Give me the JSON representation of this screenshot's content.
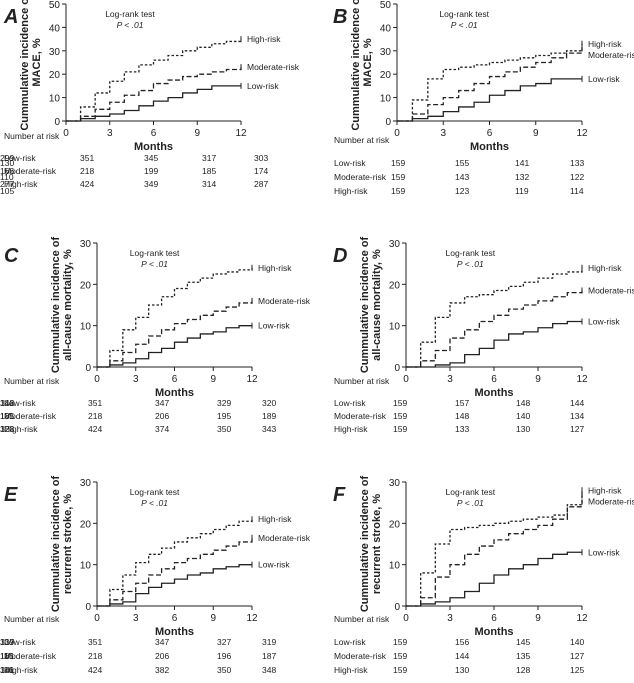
{
  "figure": {
    "x_label": "Months",
    "x_ticks": [
      0,
      3,
      6,
      9,
      12
    ],
    "test_title": "Log-rank test",
    "p_value": "P < .01",
    "risk_table_title": "Number at risk",
    "group_labels": [
      "Low-risk",
      "Moderate-risk",
      "High-risk"
    ]
  },
  "chart_data": [
    {
      "panel": "A",
      "type": "line",
      "ylabel": "Cummulative incidence of MACE, %",
      "ylim": [
        0,
        50
      ],
      "y_ticks": [
        0,
        10,
        20,
        30,
        40,
        50
      ],
      "xlim": [
        0,
        12
      ],
      "series": [
        {
          "name": "Low-risk",
          "style": "solid",
          "x": [
            0,
            1,
            2,
            3,
            4,
            5,
            6,
            7,
            8,
            9,
            10,
            11,
            12
          ],
          "values": [
            0,
            1,
            2,
            3,
            4.5,
            6.5,
            8.5,
            10,
            12,
            13.5,
            15,
            15,
            15
          ]
        },
        {
          "name": "Moderate-risk",
          "style": "dashed",
          "x": [
            0,
            1,
            2,
            3,
            4,
            5,
            6,
            7,
            8,
            9,
            10,
            11,
            12
          ],
          "values": [
            0,
            2,
            5,
            8,
            11,
            13,
            16,
            17.5,
            19,
            20,
            21,
            22,
            23
          ]
        },
        {
          "name": "High-risk",
          "style": "dotted",
          "x": [
            0,
            1,
            2,
            3,
            4,
            5,
            6,
            7,
            8,
            9,
            10,
            11,
            12
          ],
          "values": [
            0,
            6,
            12,
            17,
            21,
            24,
            26,
            28,
            30,
            31.5,
            33,
            34,
            35
          ]
        }
      ],
      "risk_table": {
        "Low-risk": [
          351,
          345,
          317,
          303,
          299
        ],
        "Moderate-risk": [
          218,
          199,
          185,
          174,
          166
        ],
        "High-risk": [
          424,
          349,
          314,
          287,
          277
        ]
      }
    },
    {
      "panel": "B",
      "type": "line",
      "ylabel": "Cummulative incidence of MACE, %",
      "ylim": [
        0,
        50
      ],
      "y_ticks": [
        0,
        10,
        20,
        30,
        40,
        50
      ],
      "xlim": [
        0,
        12
      ],
      "series": [
        {
          "name": "High-risk",
          "style": "dotted",
          "x": [
            0,
            1,
            2,
            3,
            4,
            5,
            6,
            7,
            8,
            9,
            10,
            11,
            12
          ],
          "values": [
            0,
            9,
            18,
            22,
            23,
            24,
            25,
            26,
            27,
            28,
            29,
            30,
            33
          ]
        },
        {
          "name": "Moderate-risk",
          "style": "dashed",
          "x": [
            0,
            1,
            2,
            3,
            4,
            5,
            6,
            7,
            8,
            9,
            10,
            11,
            12
          ],
          "values": [
            0,
            3,
            7,
            10,
            13,
            16,
            19,
            21,
            23,
            25,
            27,
            29,
            31
          ]
        },
        {
          "name": "Low-risk",
          "style": "solid",
          "x": [
            0,
            1,
            2,
            3,
            4,
            5,
            6,
            7,
            8,
            9,
            10,
            11,
            12
          ],
          "values": [
            0,
            1,
            2,
            4,
            6,
            8,
            11,
            13,
            15,
            16,
            18,
            18,
            18
          ]
        }
      ],
      "risk_table": {
        "Low-risk": [
          159,
          155,
          141,
          133,
          130
        ],
        "Moderate-risk": [
          159,
          143,
          132,
          122,
          110
        ],
        "High-risk": [
          159,
          123,
          119,
          114,
          105
        ]
      }
    },
    {
      "panel": "C",
      "type": "line",
      "ylabel": "Cummulative incidence of all-cause mortality, %",
      "ylim": [
        0,
        30
      ],
      "y_ticks": [
        0,
        10,
        20,
        30
      ],
      "xlim": [
        0,
        12
      ],
      "series": [
        {
          "name": "High-risk",
          "style": "dotted",
          "x": [
            0,
            1,
            2,
            3,
            4,
            5,
            6,
            7,
            8,
            9,
            10,
            11,
            12
          ],
          "values": [
            0,
            4,
            9,
            12,
            15,
            17,
            19,
            20.5,
            21.5,
            22.5,
            23,
            23.5,
            24
          ]
        },
        {
          "name": "Moderate-risk",
          "style": "dashed",
          "x": [
            0,
            1,
            2,
            3,
            4,
            5,
            6,
            7,
            8,
            9,
            10,
            11,
            12
          ],
          "values": [
            0,
            1.5,
            3.5,
            5.5,
            7.5,
            9,
            10.5,
            11.5,
            12.5,
            13.5,
            14.5,
            15.5,
            16
          ]
        },
        {
          "name": "Low-risk",
          "style": "solid",
          "x": [
            0,
            1,
            2,
            3,
            4,
            5,
            6,
            7,
            8,
            9,
            10,
            11,
            12
          ],
          "values": [
            0,
            0.5,
            1,
            2,
            3.5,
            4.5,
            6,
            7,
            8,
            8.5,
            9.5,
            10,
            10
          ]
        }
      ],
      "risk_table": {
        "Low-risk": [
          351,
          347,
          329,
          320,
          318
        ],
        "Moderate-risk": [
          218,
          206,
          195,
          189,
          185
        ],
        "High-risk": [
          424,
          374,
          350,
          343,
          328
        ]
      }
    },
    {
      "panel": "D",
      "type": "line",
      "ylabel": "Cummulative incidence of all-cause mortality, %",
      "ylim": [
        0,
        30
      ],
      "y_ticks": [
        0,
        10,
        20,
        30
      ],
      "xlim": [
        0,
        12
      ],
      "series": [
        {
          "name": "High-risk",
          "style": "dotted",
          "x": [
            0,
            1,
            2,
            3,
            4,
            5,
            6,
            7,
            8,
            9,
            10,
            11,
            12
          ],
          "values": [
            0,
            6,
            12,
            15.5,
            17,
            17.5,
            18.5,
            19.5,
            20.5,
            21.5,
            22.5,
            23,
            24
          ]
        },
        {
          "name": "Moderate-risk",
          "style": "dashed",
          "x": [
            0,
            1,
            2,
            3,
            4,
            5,
            6,
            7,
            8,
            9,
            10,
            11,
            12
          ],
          "values": [
            0,
            1.5,
            4,
            7,
            9,
            11,
            12.5,
            14,
            15,
            16,
            17,
            18,
            18.5
          ]
        },
        {
          "name": "Low-risk",
          "style": "solid",
          "x": [
            0,
            1,
            2,
            3,
            4,
            5,
            6,
            7,
            8,
            9,
            10,
            11,
            12
          ],
          "values": [
            0,
            0,
            0.5,
            1,
            3,
            4.5,
            6.5,
            8,
            8.5,
            9.5,
            10.5,
            11,
            11
          ]
        }
      ],
      "risk_table": {
        "Low-risk": [
          159,
          157,
          148,
          144,
          142
        ],
        "Moderate-risk": [
          159,
          148,
          140,
          134,
          131
        ],
        "High-risk": [
          159,
          133,
          130,
          127,
          123
        ]
      }
    },
    {
      "panel": "E",
      "type": "line",
      "ylabel": "Cummulative incidence of recurrent stroke, %",
      "ylim": [
        0,
        30
      ],
      "y_ticks": [
        0,
        10,
        20,
        30
      ],
      "xlim": [
        0,
        12
      ],
      "series": [
        {
          "name": "High-risk",
          "style": "dotted",
          "x": [
            0,
            1,
            2,
            3,
            4,
            5,
            6,
            7,
            8,
            9,
            10,
            11,
            12
          ],
          "values": [
            0,
            4,
            7.5,
            10.5,
            12.5,
            14,
            15.5,
            16.5,
            17.5,
            18.5,
            19.5,
            20.5,
            21
          ]
        },
        {
          "name": "Moderate-risk",
          "style": "dashed",
          "x": [
            0,
            1,
            2,
            3,
            4,
            5,
            6,
            7,
            8,
            9,
            10,
            11,
            12
          ],
          "values": [
            0,
            1.5,
            3.5,
            5.5,
            7.5,
            9,
            10.5,
            11.5,
            12.5,
            13.5,
            14.5,
            15.5,
            16.5
          ]
        },
        {
          "name": "Low-risk",
          "style": "solid",
          "x": [
            0,
            1,
            2,
            3,
            4,
            5,
            6,
            7,
            8,
            9,
            10,
            11,
            12
          ],
          "values": [
            0,
            0.5,
            1,
            3,
            4.5,
            5.5,
            6.5,
            7.5,
            8,
            9,
            9.5,
            10,
            10
          ]
        }
      ],
      "risk_table": {
        "Low-risk": [
          351,
          347,
          327,
          319,
          317
        ],
        "Moderate-risk": [
          218,
          206,
          196,
          187,
          181
        ],
        "High-risk": [
          424,
          382,
          350,
          348,
          341
        ]
      }
    },
    {
      "panel": "F",
      "type": "line",
      "ylabel": "Cummulative incidence of recurrent stroke, %",
      "ylim": [
        0,
        30
      ],
      "y_ticks": [
        0,
        10,
        20,
        30
      ],
      "xlim": [
        0,
        12
      ],
      "series": [
        {
          "name": "High-risk",
          "style": "dotted",
          "x": [
            0,
            1,
            2,
            3,
            4,
            5,
            6,
            7,
            8,
            9,
            10,
            11,
            12
          ],
          "values": [
            0,
            8,
            15,
            18.5,
            19,
            19.5,
            20,
            20.5,
            21,
            21.5,
            22,
            24.5,
            28
          ]
        },
        {
          "name": "Moderate-risk",
          "style": "dashed",
          "x": [
            0,
            1,
            2,
            3,
            4,
            5,
            6,
            7,
            8,
            9,
            10,
            11,
            12
          ],
          "values": [
            0,
            2,
            7,
            10,
            12.5,
            14.5,
            16,
            17.5,
            18.5,
            19.5,
            21,
            24,
            27
          ]
        },
        {
          "name": "Low-risk",
          "style": "solid",
          "x": [
            0,
            1,
            2,
            3,
            4,
            5,
            6,
            7,
            8,
            9,
            10,
            11,
            12
          ],
          "values": [
            0,
            0.5,
            1,
            2,
            3.5,
            5.5,
            7.5,
            9,
            10,
            11.5,
            12.5,
            13,
            13
          ]
        }
      ],
      "risk_table": {
        "Low-risk": [
          159,
          156,
          145,
          140,
          139
        ],
        "Moderate-risk": [
          159,
          144,
          135,
          127,
          116
        ],
        "High-risk": [
          159,
          130,
          128,
          125,
          116
        ]
      }
    }
  ]
}
